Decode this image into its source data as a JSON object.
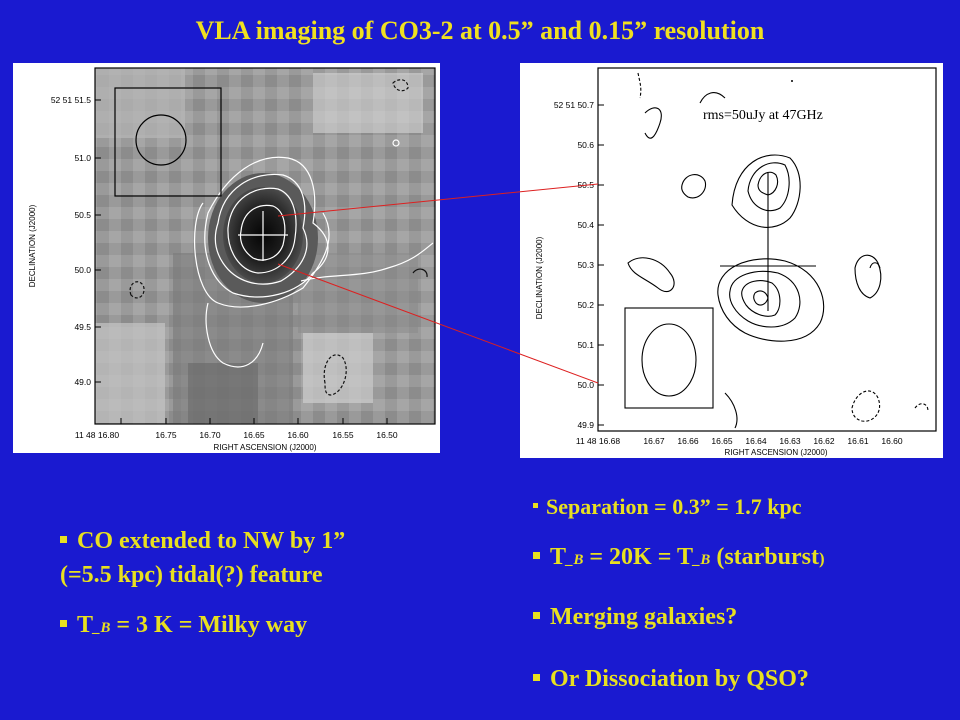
{
  "title": "VLA imaging of CO3-2 at 0.5” and 0.15” resolution",
  "left_panel": {
    "y_axis_label": "DECLINATION (J2000)",
    "x_axis_label": "RIGHT ASCENSION (J2000)",
    "y_ticks": [
      "52 51 51.5",
      "51.0",
      "50.5",
      "50.0",
      "49.5",
      "49.0"
    ],
    "x_ticks": [
      "11 48 16.80",
      "16.75",
      "16.70",
      "16.65",
      "16.60",
      "16.55",
      "16.50"
    ]
  },
  "right_panel": {
    "annotation": "rms=50uJy at 47GHz",
    "y_axis_label": "DECLINATION (J2000)",
    "x_axis_label": "RIGHT ASCENSION (J2000)",
    "y_ticks": [
      "52 51 50.7",
      "50.6",
      "50.5",
      "50.4",
      "50.3",
      "50.2",
      "50.1",
      "50.0",
      "49.9"
    ],
    "x_ticks": [
      "11 48 16.68",
      "16.67",
      "16.66",
      "16.65",
      "16.64",
      "16.63",
      "16.62",
      "16.61",
      "16.60"
    ]
  },
  "bullets_left": {
    "b1_line1": "CO extended to NW by 1”",
    "b1_line2": "(=5.5 kpc)  tidal(?)  feature",
    "b2_pre": "T",
    "b2_sub": "_B",
    "b2_post": " = 3 K = Milky way"
  },
  "bullets_right": {
    "b1": "Separation = 0.3” = 1.7 kpc",
    "b2_t1": "T",
    "b2_sub1": "_B",
    "b2_mid": " = 20K  =  T",
    "b2_sub2": "_B",
    "b2_post": " (starburst",
    "b2_paren": ")",
    "b3": "Merging galaxies?",
    "b4": "Or Dissociation by QSO?"
  },
  "colors": {
    "background": "#1a1ad0",
    "title": "#f0e020",
    "bullet_text": "#e8e020",
    "connector": "#dd2020"
  }
}
